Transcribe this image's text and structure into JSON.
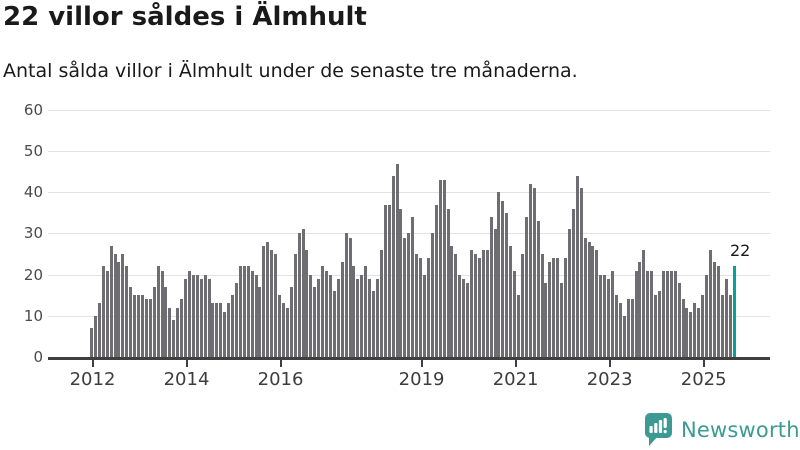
{
  "header": {
    "title": "22 villor såldes i Älmhult",
    "subtitle": "Antal sålda villor i Älmhult under de senaste tre månaderna."
  },
  "chart_data": {
    "type": "bar",
    "title": "22 villor såldes i Älmhult",
    "subtitle": "Antal sålda villor i Älmhult under de senaste tre månaderna.",
    "x_start": "2012-01",
    "x_end": "2025-09",
    "frequency": "monthly",
    "ylim": [
      0,
      60
    ],
    "yticks": [
      0,
      10,
      20,
      30,
      40,
      50,
      60
    ],
    "grid": "horizontal",
    "legend": "none",
    "bar_color": "#6d6d72",
    "axis_color": "#3f3f3f",
    "gridline_color": "#e2e2e2",
    "x_ticks": [
      {
        "label": "2012",
        "month_index": 0
      },
      {
        "label": "2014",
        "month_index": 24
      },
      {
        "label": "2016",
        "month_index": 48
      },
      {
        "label": "2019",
        "month_index": 84
      },
      {
        "label": "2021",
        "month_index": 108
      },
      {
        "label": "2023",
        "month_index": 132
      },
      {
        "label": "2025",
        "month_index": 156
      }
    ],
    "values": [
      7,
      10,
      13,
      22,
      21,
      27,
      25,
      23,
      25,
      22,
      17,
      15,
      15,
      15,
      14,
      14,
      17,
      22,
      21,
      17,
      12,
      9,
      12,
      14,
      19,
      21,
      20,
      20,
      19,
      20,
      19,
      13,
      13,
      13,
      11,
      13,
      15,
      18,
      22,
      22,
      22,
      21,
      20,
      17,
      27,
      28,
      26,
      25,
      15,
      13,
      12,
      17,
      25,
      30,
      31,
      26,
      20,
      17,
      19,
      22,
      21,
      20,
      16,
      19,
      23,
      30,
      29,
      22,
      19,
      20,
      22,
      19,
      16,
      19,
      26,
      37,
      37,
      44,
      47,
      36,
      29,
      30,
      34,
      25,
      24,
      20,
      24,
      30,
      37,
      43,
      43,
      36,
      27,
      25,
      20,
      19,
      18,
      26,
      25,
      24,
      26,
      26,
      34,
      31,
      40,
      38,
      35,
      27,
      21,
      15,
      25,
      34,
      42,
      41,
      33,
      25,
      18,
      23,
      24,
      24,
      18,
      24,
      31,
      36,
      44,
      41,
      29,
      28,
      27,
      26,
      20,
      20,
      19,
      21,
      15,
      13,
      10,
      14,
      14,
      21,
      23,
      26,
      21,
      21,
      15,
      16,
      21,
      21,
      21,
      21,
      18,
      14,
      12,
      11,
      13,
      12,
      15,
      20,
      26,
      23,
      22,
      15,
      19,
      15,
      22
    ],
    "highlight": {
      "index": 164,
      "value": 22,
      "label": "22",
      "color": "#00a49a"
    }
  },
  "annotation": {
    "last_value_label": "22"
  },
  "branding": {
    "name": "Newsworthy",
    "color": "#3c9a93"
  }
}
